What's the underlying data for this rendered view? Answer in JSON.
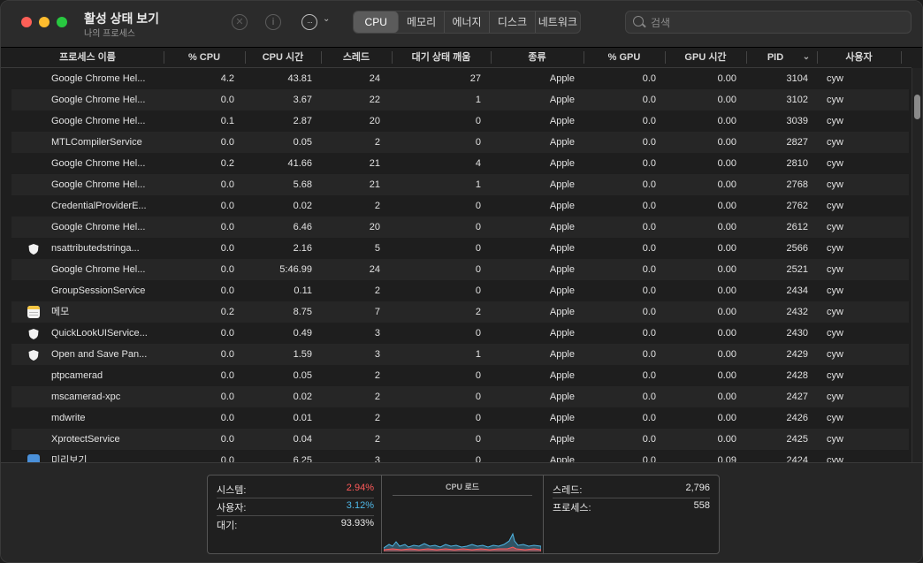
{
  "window": {
    "title": "활성 상태 보기",
    "subtitle": "나의 프로세스"
  },
  "toolbar": {
    "stop_icon": "stop-x-icon",
    "info_icon": "info-icon",
    "info_glyph": "i",
    "more_icon": "ellipsis-icon",
    "more_glyph": "···",
    "chevron_glyph": "⌄",
    "tabs": [
      "CPU",
      "메모리",
      "에너지",
      "디스크",
      "네트워크"
    ],
    "active_tab": "CPU"
  },
  "search": {
    "placeholder": "검색"
  },
  "columns": [
    "프로세스 이름",
    "% CPU",
    "CPU 시간",
    "스레드",
    "대기 상태 깨움",
    "종류",
    "% GPU",
    "GPU 시간",
    "PID",
    "사용자"
  ],
  "sort_indicator": "⌄",
  "rows": [
    {
      "icon": "",
      "name": "Google Chrome Hel...",
      "cpu": "4.2",
      "time": "43.81",
      "threads": "24",
      "wakes": "27",
      "kind": "Apple",
      "gpu": "0.0",
      "gputime": "0.00",
      "pid": "3104",
      "user": "cyw"
    },
    {
      "icon": "",
      "name": "Google Chrome Hel...",
      "cpu": "0.0",
      "time": "3.67",
      "threads": "22",
      "wakes": "1",
      "kind": "Apple",
      "gpu": "0.0",
      "gputime": "0.00",
      "pid": "3102",
      "user": "cyw"
    },
    {
      "icon": "",
      "name": "Google Chrome Hel...",
      "cpu": "0.1",
      "time": "2.87",
      "threads": "20",
      "wakes": "0",
      "kind": "Apple",
      "gpu": "0.0",
      "gputime": "0.00",
      "pid": "3039",
      "user": "cyw"
    },
    {
      "icon": "",
      "name": "MTLCompilerService",
      "cpu": "0.0",
      "time": "0.05",
      "threads": "2",
      "wakes": "0",
      "kind": "Apple",
      "gpu": "0.0",
      "gputime": "0.00",
      "pid": "2827",
      "user": "cyw"
    },
    {
      "icon": "",
      "name": "Google Chrome Hel...",
      "cpu": "0.2",
      "time": "41.66",
      "threads": "21",
      "wakes": "4",
      "kind": "Apple",
      "gpu": "0.0",
      "gputime": "0.00",
      "pid": "2810",
      "user": "cyw"
    },
    {
      "icon": "",
      "name": "Google Chrome Hel...",
      "cpu": "0.0",
      "time": "5.68",
      "threads": "21",
      "wakes": "1",
      "kind": "Apple",
      "gpu": "0.0",
      "gputime": "0.00",
      "pid": "2768",
      "user": "cyw"
    },
    {
      "icon": "",
      "name": "CredentialProviderE...",
      "cpu": "0.0",
      "time": "0.02",
      "threads": "2",
      "wakes": "0",
      "kind": "Apple",
      "gpu": "0.0",
      "gputime": "0.00",
      "pid": "2762",
      "user": "cyw"
    },
    {
      "icon": "",
      "name": "Google Chrome Hel...",
      "cpu": "0.0",
      "time": "6.46",
      "threads": "20",
      "wakes": "0",
      "kind": "Apple",
      "gpu": "0.0",
      "gputime": "0.00",
      "pid": "2612",
      "user": "cyw"
    },
    {
      "icon": "shield-icon",
      "name": "nsattributedstringa...",
      "cpu": "0.0",
      "time": "2.16",
      "threads": "5",
      "wakes": "0",
      "kind": "Apple",
      "gpu": "0.0",
      "gputime": "0.00",
      "pid": "2566",
      "user": "cyw"
    },
    {
      "icon": "",
      "name": "Google Chrome Hel...",
      "cpu": "0.0",
      "time": "5:46.99",
      "threads": "24",
      "wakes": "0",
      "kind": "Apple",
      "gpu": "0.0",
      "gputime": "0.00",
      "pid": "2521",
      "user": "cyw"
    },
    {
      "icon": "",
      "name": "GroupSessionService",
      "cpu": "0.0",
      "time": "0.11",
      "threads": "2",
      "wakes": "0",
      "kind": "Apple",
      "gpu": "0.0",
      "gputime": "0.00",
      "pid": "2434",
      "user": "cyw"
    },
    {
      "icon": "notes-icon",
      "name": "메모",
      "cpu": "0.2",
      "time": "8.75",
      "threads": "7",
      "wakes": "2",
      "kind": "Apple",
      "gpu": "0.0",
      "gputime": "0.00",
      "pid": "2432",
      "user": "cyw"
    },
    {
      "icon": "shield-icon",
      "name": "QuickLookUIService...",
      "cpu": "0.0",
      "time": "0.49",
      "threads": "3",
      "wakes": "0",
      "kind": "Apple",
      "gpu": "0.0",
      "gputime": "0.00",
      "pid": "2430",
      "user": "cyw"
    },
    {
      "icon": "shield-icon",
      "name": "Open and Save Pan...",
      "cpu": "0.0",
      "time": "1.59",
      "threads": "3",
      "wakes": "1",
      "kind": "Apple",
      "gpu": "0.0",
      "gputime": "0.00",
      "pid": "2429",
      "user": "cyw"
    },
    {
      "icon": "",
      "name": "ptpcamerad",
      "cpu": "0.0",
      "time": "0.05",
      "threads": "2",
      "wakes": "0",
      "kind": "Apple",
      "gpu": "0.0",
      "gputime": "0.00",
      "pid": "2428",
      "user": "cyw"
    },
    {
      "icon": "",
      "name": "mscamerad-xpc",
      "cpu": "0.0",
      "time": "0.02",
      "threads": "2",
      "wakes": "0",
      "kind": "Apple",
      "gpu": "0.0",
      "gputime": "0.00",
      "pid": "2427",
      "user": "cyw"
    },
    {
      "icon": "",
      "name": "mdwrite",
      "cpu": "0.0",
      "time": "0.01",
      "threads": "2",
      "wakes": "0",
      "kind": "Apple",
      "gpu": "0.0",
      "gputime": "0.00",
      "pid": "2426",
      "user": "cyw"
    },
    {
      "icon": "",
      "name": "XprotectService",
      "cpu": "0.0",
      "time": "0.04",
      "threads": "2",
      "wakes": "0",
      "kind": "Apple",
      "gpu": "0.0",
      "gputime": "0.00",
      "pid": "2425",
      "user": "cyw"
    },
    {
      "icon": "preview-icon",
      "name": "미리보기",
      "cpu": "0.0",
      "time": "6.25",
      "threads": "3",
      "wakes": "0",
      "kind": "Apple",
      "gpu": "0.0",
      "gputime": "0.09",
      "pid": "2424",
      "user": "cyw"
    }
  ],
  "stats": {
    "system_label": "시스템:",
    "system_value": "2.94%",
    "system_color": "#ff5a5a",
    "user_label": "사용자:",
    "user_value": "3.12%",
    "user_color": "#4fb8e8",
    "idle_label": "대기:",
    "idle_value": "93.93%",
    "graph_title": "CPU 로드",
    "threads_label": "스레드:",
    "threads_value": "2,796",
    "processes_label": "프로세스:",
    "processes_value": "558"
  },
  "colors": {
    "close": "#fe5f57",
    "minimize": "#febc2e",
    "maximize": "#28c840",
    "graph_user": "#4fb8e8",
    "graph_system": "#ff5a5a"
  }
}
